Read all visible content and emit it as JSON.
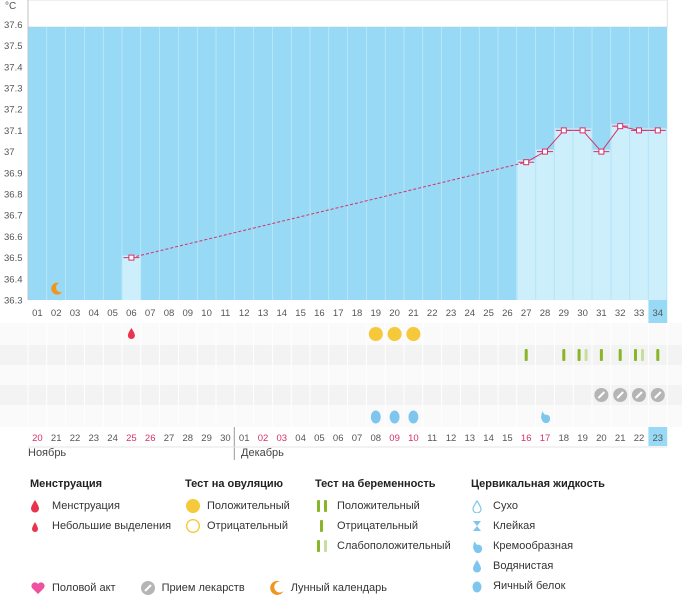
{
  "chart": {
    "unit": "°C",
    "y_ticks": [
      "37.6",
      "37.5",
      "37.4",
      "37.3",
      "37.2",
      "37.1",
      "37",
      "36.9",
      "36.8",
      "36.7",
      "36.6",
      "36.5",
      "36.4",
      "36.3"
    ],
    "cycle_days": [
      "01",
      "02",
      "03",
      "04",
      "05",
      "06",
      "07",
      "08",
      "09",
      "10",
      "11",
      "12",
      "13",
      "14",
      "15",
      "16",
      "17",
      "18",
      "19",
      "20",
      "21",
      "22",
      "23",
      "24",
      "25",
      "26",
      "27",
      "28",
      "29",
      "30",
      "31",
      "32",
      "33",
      "34"
    ],
    "calendar_days": [
      "20",
      "21",
      "22",
      "23",
      "24",
      "25",
      "26",
      "27",
      "28",
      "29",
      "30",
      "01",
      "02",
      "03",
      "04",
      "05",
      "06",
      "07",
      "08",
      "09",
      "10",
      "11",
      "12",
      "13",
      "14",
      "15",
      "16",
      "17",
      "18",
      "19",
      "20",
      "21",
      "22",
      "23"
    ],
    "weekend_days": [
      0,
      5,
      6,
      12,
      13,
      19,
      20,
      26,
      27
    ],
    "months": [
      "Ноябрь",
      "Декабрь"
    ]
  },
  "chart_data": {
    "type": "line",
    "xlabel": "",
    "ylabel": "°C",
    "ylim": [
      36.3,
      37.6
    ],
    "x": [
      6,
      27,
      28,
      29,
      30,
      31,
      32,
      33,
      34
    ],
    "values": [
      36.5,
      36.95,
      37.0,
      37.1,
      37.1,
      37.0,
      37.12,
      37.1,
      37.1
    ],
    "dashed_segment": [
      6,
      27
    ]
  },
  "markers": {
    "moon_day": 2,
    "menstruation_day": 6,
    "ovulation_positive_days": [
      19,
      20,
      21
    ],
    "pregnancy_tests": [
      {
        "day": 27,
        "kind": "positive"
      },
      {
        "day": 29,
        "kind": "positive"
      },
      {
        "day": 30,
        "kind": "faint"
      },
      {
        "day": 31,
        "kind": "positive"
      },
      {
        "day": 32,
        "kind": "positive"
      },
      {
        "day": 33,
        "kind": "faint"
      },
      {
        "day": 34,
        "kind": "positive"
      }
    ],
    "medication_days": [
      31,
      32,
      33,
      34
    ],
    "fluid_eggwhite_days": [
      19,
      20,
      21
    ],
    "fluid_creamy_days": [
      28
    ]
  },
  "legend": {
    "menstruation": {
      "title": "Менструация",
      "items": [
        "Менструация",
        "Небольшие выделения"
      ]
    },
    "ovulation": {
      "title": "Тест на овуляцию",
      "items": [
        "Положительный",
        "Отрицательный"
      ]
    },
    "pregnancy": {
      "title": "Тест на беременность",
      "items": [
        "Положительный",
        "Отрицательный",
        "Слабоположительный"
      ]
    },
    "fluid": {
      "title": "Цервикальная жидкость",
      "items": [
        "Сухо",
        "Клейкая",
        "Кремообразная",
        "Водянистая",
        "Яичный белок"
      ]
    },
    "bottom": [
      "Половой акт",
      "Прием лекарств",
      "Лунный календарь"
    ]
  },
  "colors": {
    "sky": "#98daf5",
    "bar": "#cdeefb",
    "line": "#d6306a",
    "red": "#e8344c",
    "yellow": "#f5c93a",
    "green": "#88b626",
    "green_faint": "#c8dea0",
    "blue": "#7ec6ee",
    "orange": "#f0961e",
    "pink": "#f050a0",
    "grey": "#b5b5b5"
  }
}
